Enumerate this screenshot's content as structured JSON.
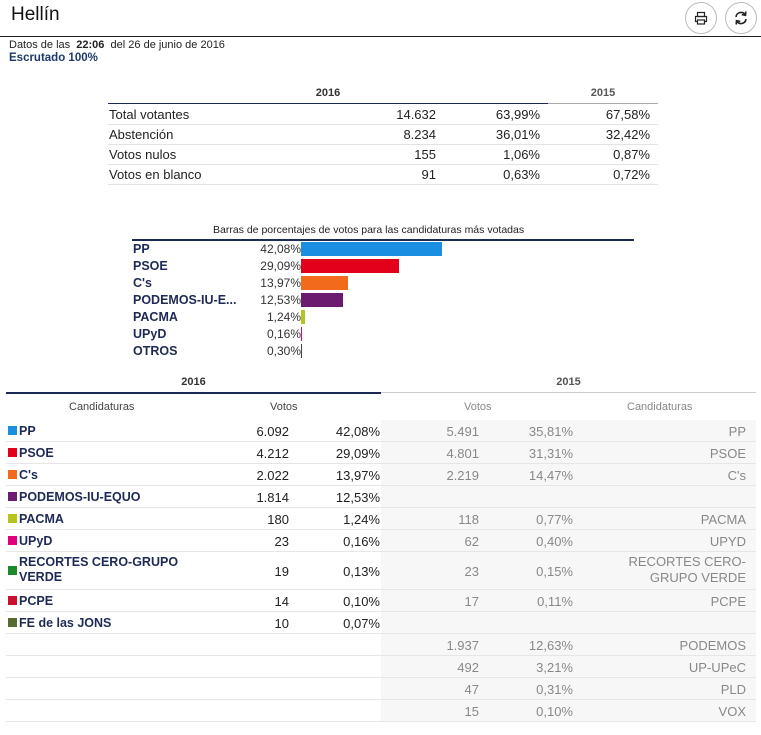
{
  "header": {
    "title": "Hellín"
  },
  "meta": {
    "prefix": "Datos de las",
    "time": "22:06",
    "date_text": "del 26 de junio de 2016",
    "escrutado": "Escrutado 100%"
  },
  "summary": {
    "year_current": "2016",
    "year_previous": "2015",
    "rows": [
      {
        "label": "Total votantes",
        "value": "14.632",
        "pct": "63,99%",
        "prev_pct": "67,58%"
      },
      {
        "label": "Abstención",
        "value": "8.234",
        "pct": "36,01%",
        "prev_pct": "32,42%"
      },
      {
        "label": "Votos nulos",
        "value": "155",
        "pct": "1,06%",
        "prev_pct": "0,87%"
      },
      {
        "label": "Votos en blanco",
        "value": "91",
        "pct": "0,63%",
        "prev_pct": "0,72%"
      }
    ]
  },
  "chart_data": {
    "type": "bar",
    "title": "Barras de porcentajes de votos para las candidaturas más votadas",
    "categories": [
      "PP",
      "PSOE",
      "C's",
      "PODEMOS-IU-E...",
      "PACMA",
      "UPyD",
      "OTROS"
    ],
    "values": [
      42.08,
      29.09,
      13.97,
      12.53,
      1.24,
      0.16,
      0.3
    ],
    "value_labels": [
      "42,08%",
      "29,09%",
      "13,97%",
      "12,53%",
      "1,24%",
      "0,16%",
      "0,30%"
    ],
    "colors": [
      "#1a8ee0",
      "#e3001b",
      "#f26b1d",
      "#6b1c6e",
      "#b7c41b",
      "#e2007a",
      "#444444"
    ],
    "ylim": [
      0,
      100
    ]
  },
  "results": {
    "year_current": "2016",
    "year_previous": "2015",
    "col_candidaturas": "Candidaturas",
    "col_votos": "Votos",
    "rows": [
      {
        "party": "PP",
        "color": "#1a8ee0",
        "votes": "6.092",
        "pct": "42,08%",
        "prev_votes": "5.491",
        "prev_pct": "35,81%",
        "prev_party": "PP"
      },
      {
        "party": "PSOE",
        "color": "#e3001b",
        "votes": "4.212",
        "pct": "29,09%",
        "prev_votes": "4.801",
        "prev_pct": "31,31%",
        "prev_party": "PSOE"
      },
      {
        "party": "C's",
        "color": "#f26b1d",
        "votes": "2.022",
        "pct": "13,97%",
        "prev_votes": "2.219",
        "prev_pct": "14,47%",
        "prev_party": "C's"
      },
      {
        "party": "PODEMOS-IU-EQUO",
        "color": "#6b1c6e",
        "votes": "1.814",
        "pct": "12,53%",
        "prev_votes": "",
        "prev_pct": "",
        "prev_party": ""
      },
      {
        "party": "PACMA",
        "color": "#b7c41b",
        "votes": "180",
        "pct": "1,24%",
        "prev_votes": "118",
        "prev_pct": "0,77%",
        "prev_party": "PACMA"
      },
      {
        "party": "UPyD",
        "color": "#e2007a",
        "votes": "23",
        "pct": "0,16%",
        "prev_votes": "62",
        "prev_pct": "0,40%",
        "prev_party": "UPYD"
      },
      {
        "party": "RECORTES CERO-GRUPO VERDE",
        "color": "#1a8a2a",
        "votes": "19",
        "pct": "0,13%",
        "prev_votes": "23",
        "prev_pct": "0,15%",
        "prev_party": "RECORTES CERO-GRUPO VERDE"
      },
      {
        "party": "PCPE",
        "color": "#c8102e",
        "votes": "14",
        "pct": "0,10%",
        "prev_votes": "17",
        "prev_pct": "0,11%",
        "prev_party": "PCPE"
      },
      {
        "party": "FE de las JONS",
        "color": "#556b2f",
        "votes": "10",
        "pct": "0,07%",
        "prev_votes": "",
        "prev_pct": "",
        "prev_party": ""
      },
      {
        "party": "",
        "color": "",
        "votes": "",
        "pct": "",
        "prev_votes": "1.937",
        "prev_pct": "12,63%",
        "prev_party": "PODEMOS"
      },
      {
        "party": "",
        "color": "",
        "votes": "",
        "pct": "",
        "prev_votes": "492",
        "prev_pct": "3,21%",
        "prev_party": "UP-UPeC"
      },
      {
        "party": "",
        "color": "",
        "votes": "",
        "pct": "",
        "prev_votes": "47",
        "prev_pct": "0,31%",
        "prev_party": "PLD"
      },
      {
        "party": "",
        "color": "",
        "votes": "",
        "pct": "",
        "prev_votes": "15",
        "prev_pct": "0,10%",
        "prev_party": "VOX"
      }
    ]
  },
  "icons": {
    "print": "print-icon",
    "refresh": "refresh-icon"
  }
}
